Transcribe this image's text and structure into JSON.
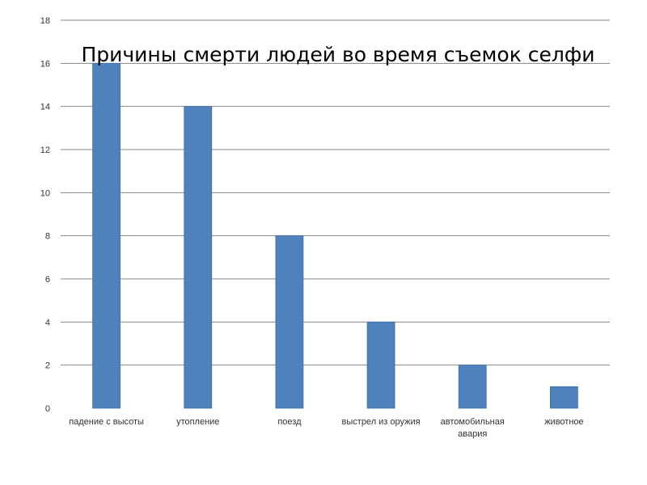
{
  "chart_data": {
    "type": "bar",
    "title": "Причины смерти людей во время съемок селфи",
    "xlabel": "",
    "ylabel": "",
    "ylim": [
      0,
      18
    ],
    "yticks": [
      0,
      2,
      4,
      6,
      8,
      10,
      12,
      14,
      16,
      18
    ],
    "grid": true,
    "legend": "none",
    "bar_color": "#4f81bd",
    "categories": [
      [
        "падение с высоты"
      ],
      [
        "утопление"
      ],
      [
        "поезд"
      ],
      [
        "выстрел из оружия"
      ],
      [
        "автомобильная",
        "авария"
      ],
      [
        "животное"
      ]
    ],
    "values": [
      16,
      14,
      8,
      4,
      2,
      1
    ]
  }
}
